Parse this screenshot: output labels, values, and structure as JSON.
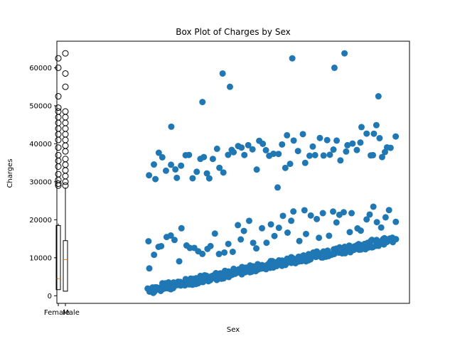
{
  "chart_data": {
    "type": "box",
    "title": "Box Plot of Charges by Sex",
    "xlabel": "Sex",
    "ylabel": "Charges",
    "ylim": [
      -2000,
      67000
    ],
    "yticks": [
      0,
      10000,
      20000,
      30000,
      40000,
      50000,
      60000
    ],
    "ytick_labels": [
      "0",
      "10000",
      "20000",
      "30000",
      "40000",
      "50000",
      "60000"
    ],
    "categories": [
      "Female",
      "Male"
    ],
    "boxes": [
      {
        "name": "Female",
        "q1": 1600,
        "median": 4500,
        "q3": 18500,
        "whisker_low": 1600,
        "whisker_high": 19000,
        "outliers": [
          29000,
          29500,
          30500,
          32000,
          34000,
          35500,
          37000,
          39000,
          41000,
          42500,
          44000,
          45500,
          47000,
          48500,
          49500,
          52500,
          60000,
          62500
        ]
      },
      {
        "name": "Male",
        "q1": 1200,
        "median": 9500,
        "q3": 14500,
        "whisker_low": 1100,
        "whisker_high": 28500,
        "outliers": [
          29000,
          30000,
          31500,
          33000,
          34500,
          36000,
          38000,
          39500,
          41000,
          42500,
          44000,
          45500,
          47000,
          48500,
          55000,
          58500,
          63800
        ]
      }
    ],
    "scatter_color": "#1f77b4",
    "scatter_x_range": [
      0,
      1338
    ],
    "scatter_bands": [
      {
        "y_start": 1100,
        "y_end": 14500,
        "count": 170
      },
      {
        "y_start": 12000,
        "y_end": 30000,
        "count": 60
      },
      {
        "y_start": 33000,
        "y_end": 49000,
        "count": 70
      }
    ],
    "scatter_points": [
      {
        "x": 0,
        "y": 7200
      },
      {
        "x": 120,
        "y": 44500
      },
      {
        "x": 290,
        "y": 51000
      },
      {
        "x": 400,
        "y": 58500
      },
      {
        "x": 440,
        "y": 55000
      },
      {
        "x": 700,
        "y": 28500
      },
      {
        "x": 780,
        "y": 62500
      },
      {
        "x": 1010,
        "y": 60000
      },
      {
        "x": 1065,
        "y": 63800
      },
      {
        "x": 1250,
        "y": 52500
      },
      {
        "x": 1220,
        "y": 37000
      },
      {
        "x": 1270,
        "y": 36500
      }
    ]
  }
}
